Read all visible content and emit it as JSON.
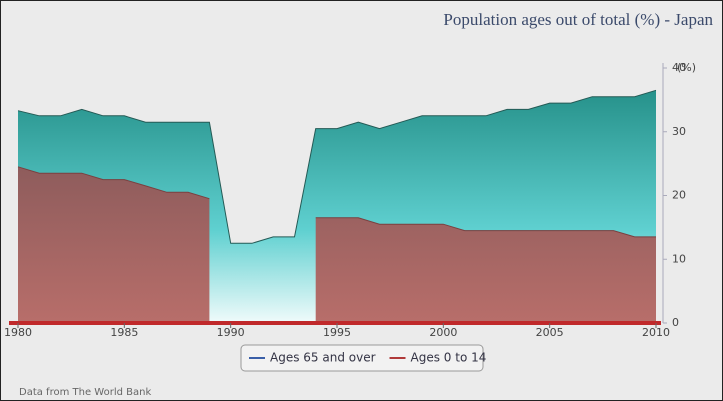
{
  "chart_data": {
    "type": "area",
    "title": "Population ages out of total (%) - Japan",
    "y_label": "(%)",
    "source": "Data from The World Bank",
    "x": [
      1980,
      1981,
      1982,
      1983,
      1984,
      1985,
      1986,
      1987,
      1988,
      1989,
      1990,
      1991,
      1992,
      1993,
      1994,
      1995,
      1996,
      1997,
      1998,
      1999,
      2000,
      2001,
      2002,
      2003,
      2004,
      2005,
      2006,
      2007,
      2008,
      2009,
      2010
    ],
    "series": [
      {
        "name": "Ages 65 and over",
        "color": "#3a5fa8",
        "values": [
          33.3,
          32.5,
          32.5,
          33.5,
          32.5,
          32.5,
          31.5,
          31.5,
          31.5,
          31.5,
          12.5,
          12.5,
          13.5,
          13.5,
          30.5,
          30.5,
          31.5,
          30.5,
          31.5,
          32.5,
          32.5,
          32.5,
          32.5,
          33.5,
          33.5,
          34.5,
          34.5,
          35.5,
          35.5,
          35.5,
          36.5
        ]
      },
      {
        "name": "Ages 0 to 14",
        "color": "#b03a3a",
        "values": [
          24.5,
          23.5,
          23.5,
          23.5,
          22.5,
          22.5,
          21.5,
          20.5,
          20.5,
          19.5,
          null,
          null,
          null,
          null,
          16.5,
          16.5,
          16.5,
          15.5,
          15.5,
          15.5,
          15.5,
          14.5,
          14.5,
          14.5,
          14.5,
          14.5,
          14.5,
          14.5,
          14.5,
          13.5,
          13.5
        ]
      }
    ],
    "xlim": [
      1980,
      2010
    ],
    "xticks": [
      1980,
      1985,
      1990,
      1995,
      2000,
      2005,
      2010
    ],
    "ylim": [
      0,
      40
    ],
    "yticks": [
      0,
      10,
      20,
      30,
      40
    ]
  }
}
